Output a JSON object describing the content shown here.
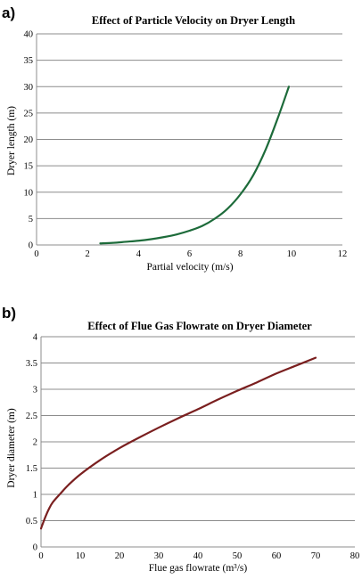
{
  "chart_data": [
    {
      "panel": "a)",
      "type": "line",
      "title": "Effect of Particle Velocity on Dryer Length",
      "xlabel": "Partial velocity (m/s)",
      "ylabel": "Dryer length (m)",
      "xlim": [
        0,
        12
      ],
      "ylim": [
        0,
        40
      ],
      "xticks": [
        0,
        2,
        4,
        6,
        8,
        10,
        12
      ],
      "yticks": [
        0,
        5,
        10,
        15,
        20,
        25,
        30,
        35,
        40
      ],
      "grid": "horizontal",
      "series": [
        {
          "color": "#1d6b3a",
          "x": [
            2.5,
            3.0,
            3.5,
            4.0,
            4.5,
            5.0,
            5.5,
            6.0,
            6.5,
            7.0,
            7.5,
            8.0,
            8.5,
            9.0,
            9.5,
            9.9
          ],
          "y": [
            0.3,
            0.4,
            0.6,
            0.8,
            1.1,
            1.5,
            2.0,
            2.7,
            3.6,
            5.0,
            6.9,
            9.6,
            13.2,
            18.2,
            24.5,
            30.0
          ]
        }
      ]
    },
    {
      "panel": "b)",
      "type": "line",
      "title": "Effect of Flue Gas Flowrate on Dryer Diameter",
      "xlabel": "Flue gas flowrate (m³/s)",
      "ylabel": "Dryer diameter (m)",
      "xlim": [
        0,
        80
      ],
      "ylim": [
        0,
        4
      ],
      "xticks": [
        0,
        10,
        20,
        30,
        40,
        50,
        60,
        70,
        80
      ],
      "yticks": [
        0,
        0.5,
        1,
        1.5,
        2,
        2.5,
        3,
        3.5,
        4
      ],
      "grid": "horizontal",
      "series": [
        {
          "color": "#7a1f1f",
          "x": [
            0,
            1,
            2,
            3,
            5,
            7,
            10,
            15,
            20,
            25,
            30,
            35,
            40,
            45,
            50,
            55,
            60,
            65,
            70
          ],
          "y": [
            0.35,
            0.55,
            0.72,
            0.85,
            1.02,
            1.18,
            1.38,
            1.65,
            1.88,
            2.08,
            2.27,
            2.45,
            2.62,
            2.8,
            2.97,
            3.13,
            3.3,
            3.45,
            3.6
          ]
        }
      ]
    }
  ]
}
